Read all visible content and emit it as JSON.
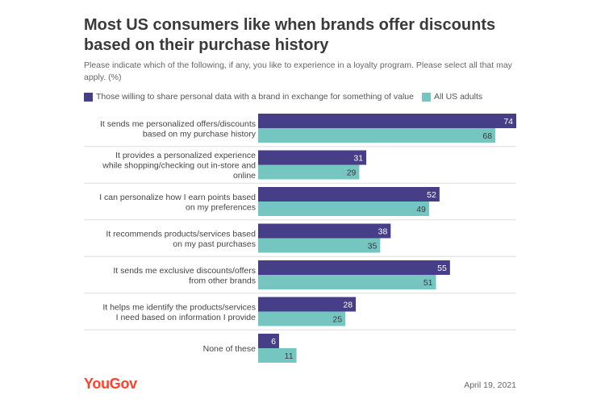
{
  "title": "Most US consumers like when brands offer discounts based on their purchase history",
  "subtitle": "Please indicate which of the following, if any, you like to experience in a loyalty program. Please select all that may apply. (%)",
  "brand": "YouGov",
  "date": "April 19, 2021",
  "colors": {
    "series1": "#463e87",
    "series2": "#75c5c1",
    "brand": "#ff412c"
  },
  "chart_data": {
    "type": "bar",
    "orientation": "horizontal",
    "categories": [
      [
        "It sends me personalized offers/discounts",
        "based on my purchase history"
      ],
      [
        "It provides a personalized experience",
        "while shopping/checking out in-store and",
        "online"
      ],
      [
        "I can personalize how I earn points based",
        "on my preferences"
      ],
      [
        "It recommends products/services based",
        "on my past purchases"
      ],
      [
        "It sends me exclusive discounts/offers",
        "from other brands"
      ],
      [
        "It helps me identify the products/services",
        "I need based on information I provide"
      ],
      [
        "None of these"
      ]
    ],
    "series": [
      {
        "name": "Those willing to share personal data with a brand in exchange for something of value",
        "color": "#463e87",
        "values": [
          74,
          31,
          52,
          38,
          55,
          28,
          6
        ]
      },
      {
        "name": "All US adults",
        "color": "#75c5c1",
        "values": [
          68,
          29,
          49,
          35,
          51,
          25,
          11
        ]
      }
    ],
    "xlim": [
      0,
      74
    ],
    "grid": false,
    "legend_position": "top"
  }
}
